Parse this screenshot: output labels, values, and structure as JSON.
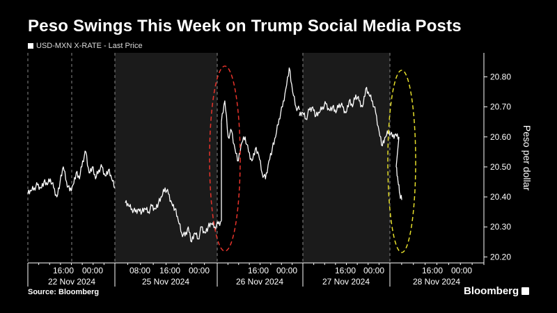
{
  "header": {
    "title": "Peso Swings This Week on Trump Social Media Posts",
    "legend_label": "USD-MXN X-RATE - Last Price"
  },
  "footer": {
    "source": "Source: Bloomberg",
    "brand": "Bloomberg"
  },
  "colors": {
    "background": "#000000",
    "shade": "#1b1b1b",
    "line": "#ffffff",
    "ellipse_red": "#e8332b",
    "ellipse_yellow": "#e6df2a"
  },
  "chart_data": {
    "type": "line",
    "ylabel": "Peso per dollar",
    "ylim": [
      20.18,
      20.88
    ],
    "yticks": [
      "20.20",
      "20.30",
      "20.40",
      "20.50",
      "20.60",
      "20.70",
      "20.80"
    ],
    "x_time_labels": [
      "16:00",
      "00:00",
      "08:00",
      "16:00",
      "00:00",
      "16:00",
      "00:00",
      "16:00",
      "00:00",
      "16:00",
      "00:00"
    ],
    "x_date_labels": [
      "22 Nov 2024",
      "25 Nov 2024",
      "26 Nov 2024",
      "27 Nov 2024",
      "28 Nov 2024"
    ],
    "grid": "vertical-dashed",
    "series": [
      {
        "name": "USD-MXN X-RATE - Last Price",
        "segments": [
          {
            "day": "22 Nov 2024",
            "values": [
              20.41,
              20.42,
              20.43,
              20.44,
              20.43,
              20.45,
              20.44,
              20.46,
              20.43,
              20.4,
              20.45,
              20.5,
              20.45,
              20.42,
              20.44,
              20.48,
              20.46,
              20.52,
              20.55,
              20.48,
              20.5,
              20.46,
              20.49,
              20.5,
              20.47,
              20.49,
              20.46,
              20.43
            ]
          },
          {
            "day": "25 Nov 2024",
            "values": [
              20.38,
              20.37,
              20.36,
              20.35,
              20.36,
              20.35,
              20.36,
              20.35,
              20.37,
              20.36,
              20.38,
              20.4,
              20.43,
              20.41,
              20.38,
              20.36,
              20.32,
              20.28,
              20.27,
              20.3,
              20.25,
              20.28,
              20.26,
              20.3,
              20.28,
              20.3,
              20.31,
              20.3,
              20.31,
              20.32
            ]
          },
          {
            "day": "26 Nov 2024",
            "values": [
              20.65,
              20.72,
              20.6,
              20.62,
              20.56,
              20.52,
              20.58,
              20.6,
              20.55,
              20.52,
              20.56,
              20.54,
              20.48,
              20.46,
              20.52,
              20.56,
              20.6,
              20.66,
              20.7,
              20.76,
              20.83,
              20.75,
              20.7,
              20.69
            ]
          },
          {
            "day": "27 Nov 2024",
            "values": [
              20.67,
              20.68,
              20.66,
              20.69,
              20.7,
              20.67,
              20.68,
              20.7,
              20.71,
              20.69,
              20.7,
              20.68,
              20.71,
              20.7,
              20.68,
              20.72,
              20.7,
              20.74,
              20.72,
              20.7,
              20.76,
              20.74,
              20.72,
              20.68,
              20.62,
              20.57,
              20.6,
              20.62,
              20.6,
              20.61,
              20.6
            ]
          },
          {
            "day": "28 Nov 2024",
            "values": [
              20.5,
              20.45,
              20.41,
              20.39
            ]
          }
        ]
      }
    ],
    "annotations": [
      "red dashed ellipse on 26 Nov jump",
      "yellow dashed ellipse on 28 Nov drop"
    ]
  }
}
